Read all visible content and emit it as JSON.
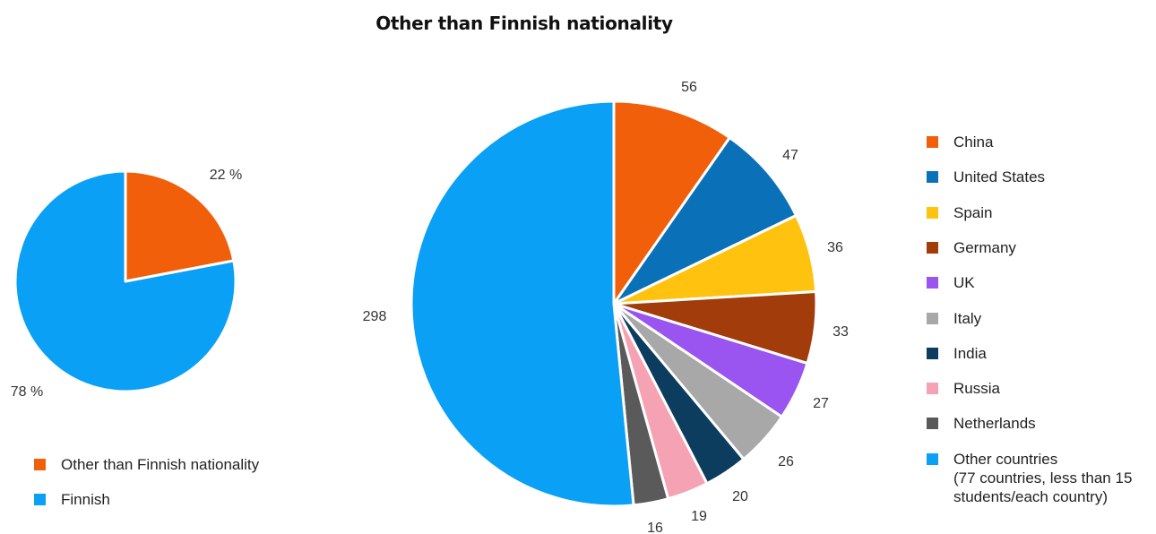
{
  "chart_data": [
    {
      "type": "pie",
      "title": "",
      "slices": [
        {
          "name": "Other than Finnish nationality",
          "value": 22,
          "label": "22 %",
          "color": "#F15F0A"
        },
        {
          "name": "Finnish",
          "value": 78,
          "label": "78 %",
          "color": "#0AA0F5"
        }
      ],
      "legend_position": "bottom-left"
    },
    {
      "type": "pie",
      "title": "Other than Finnish nationality",
      "slices": [
        {
          "name": "China",
          "value": 56,
          "label": "56",
          "color": "#F15F0A"
        },
        {
          "name": "United States",
          "value": 47,
          "label": "47",
          "color": "#0A70B8"
        },
        {
          "name": "Spain",
          "value": 36,
          "label": "36",
          "color": "#FFC20E"
        },
        {
          "name": "Germany",
          "value": 33,
          "label": "33",
          "color": "#A23C0A"
        },
        {
          "name": "UK",
          "value": 27,
          "label": "27",
          "color": "#9A55F0"
        },
        {
          "name": "Italy",
          "value": 26,
          "label": "26",
          "color": "#A8A8A8"
        },
        {
          "name": "India",
          "value": 20,
          "label": "20",
          "color": "#0C3D5F"
        },
        {
          "name": "Russia",
          "value": 19,
          "label": "19",
          "color": "#F5A3B4"
        },
        {
          "name": "Netherlands",
          "value": 16,
          "label": "16",
          "color": "#5A5A5A"
        },
        {
          "name": "Other countries",
          "note": [
            "(77 countries, less than 15",
            "students/each country)"
          ],
          "value": 298,
          "label": "298",
          "color": "#0AA0F5"
        }
      ],
      "legend_position": "right"
    }
  ]
}
